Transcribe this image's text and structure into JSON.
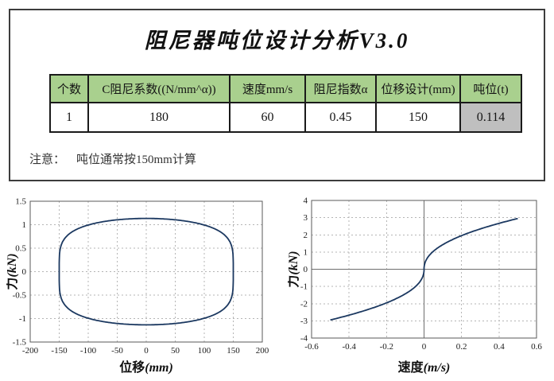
{
  "panel": {
    "title": "阻尼器吨位设计分析V3.0",
    "table": {
      "header_bg": "#a9d08e",
      "result_bg": "#bfbfbf",
      "headers": [
        "个数",
        "C阻尼系数((N/mm^α))",
        "速度mm/s",
        "阻尼指数α",
        "位移设计(mm)",
        "吨位(t)"
      ],
      "row": [
        "1",
        "180",
        "60",
        "0.45",
        "150",
        "0.114"
      ]
    },
    "note": {
      "label": "注意：",
      "text": "吨位通常按150mm计算"
    }
  },
  "chart_data": [
    {
      "type": "line",
      "title": "",
      "xlabel": "位移(mm)",
      "ylabel": "力(kN)",
      "xlim": [
        -200,
        200
      ],
      "ylim": [
        -1.5,
        1.5
      ],
      "xticks": [
        -200,
        -150,
        -100,
        -50,
        0,
        50,
        100,
        150,
        200
      ],
      "yticks": [
        -1.5,
        -1,
        -0.5,
        0,
        0.5,
        1,
        1.5
      ],
      "grid": "dashed",
      "zero_lines": false,
      "legend": "none",
      "line_color": "#1b3860",
      "curve": {
        "kind": "hysteresis_loop",
        "x_amplitude_mm": 150,
        "f_peak_kN": 1.134,
        "alpha": 0.45
      }
    },
    {
      "type": "line",
      "title": "",
      "xlabel": "速度(m/s)",
      "ylabel": "力(kN)",
      "xlim": [
        -0.6,
        0.6
      ],
      "ylim": [
        -4,
        4
      ],
      "xticks": [
        -0.6,
        -0.4,
        -0.2,
        0,
        0.2,
        0.4,
        0.6
      ],
      "yticks": [
        -4,
        -3,
        -2,
        -1,
        0,
        1,
        2,
        3,
        4
      ],
      "grid": "dashed",
      "zero_lines": true,
      "legend": "none",
      "line_color": "#1b3860",
      "curve": {
        "kind": "power_law",
        "C_N_per_mm_alpha": 180,
        "alpha": 0.45,
        "v_min_m_s": -0.5,
        "v_max_m_s": 0.5,
        "f_at_vmax_kN": 2.96
      }
    }
  ]
}
